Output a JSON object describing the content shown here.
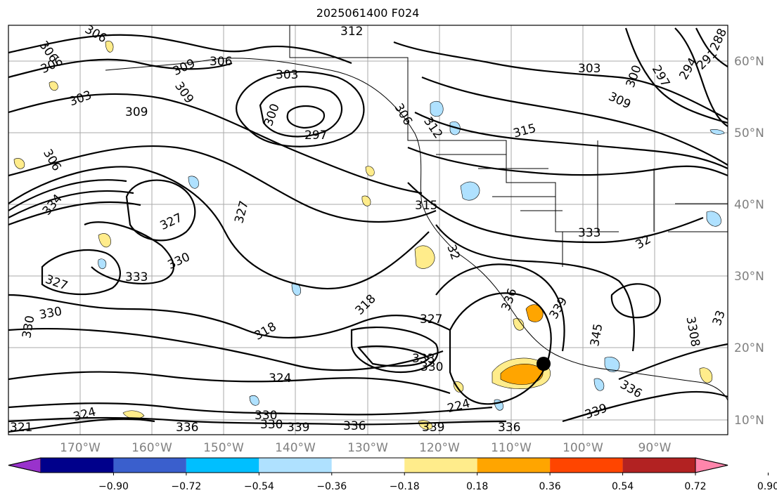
{
  "title": "2025061400 F024",
  "map": {
    "lat_labels": [
      "60°N",
      "50°N",
      "40°N",
      "30°N",
      "20°N",
      "10°N"
    ],
    "lon_labels": [
      "170°W",
      "160°W",
      "150°W",
      "140°W",
      "130°W",
      "120°W",
      "110°W",
      "100°W",
      "90°W"
    ],
    "contour_labels": [
      "312",
      "306",
      "306",
      "306",
      "309",
      "306",
      "303",
      "303",
      "309",
      "309",
      "300",
      "297",
      "306",
      "312",
      "315",
      "309",
      "303",
      "300",
      "297",
      "294",
      "291",
      "288",
      "306",
      "334",
      "327",
      "327",
      "330",
      "333",
      "327",
      "330",
      "330",
      "318",
      "318",
      "327",
      "333",
      "330",
      "324",
      "324",
      "321",
      "330",
      "330",
      "336",
      "339",
      "336",
      "339",
      "224",
      "315",
      "32",
      "333",
      "32",
      "336",
      "339",
      "345",
      "336",
      "339",
      "33",
      "336",
      "3308"
    ],
    "features": [
      "coastline",
      "country-borders",
      "state-borders",
      "gridlines",
      "height-contours",
      "shaded-anomaly"
    ],
    "hurricane_marker": "storm-center"
  },
  "colorbar": {
    "tick_labels": [
      "−0.90",
      "−0.72",
      "−0.54",
      "−0.36",
      "−0.18",
      "0.18",
      "0.36",
      "0.54",
      "0.72",
      "0.90"
    ],
    "colors": [
      "#9932cc",
      "#00008b",
      "#3a5fcd",
      "#00bfff",
      "#afe1ff",
      "#ffffff",
      "#ffec8b",
      "#ffa500",
      "#ff4500",
      "#b22222",
      "#ff85ab"
    ]
  }
}
